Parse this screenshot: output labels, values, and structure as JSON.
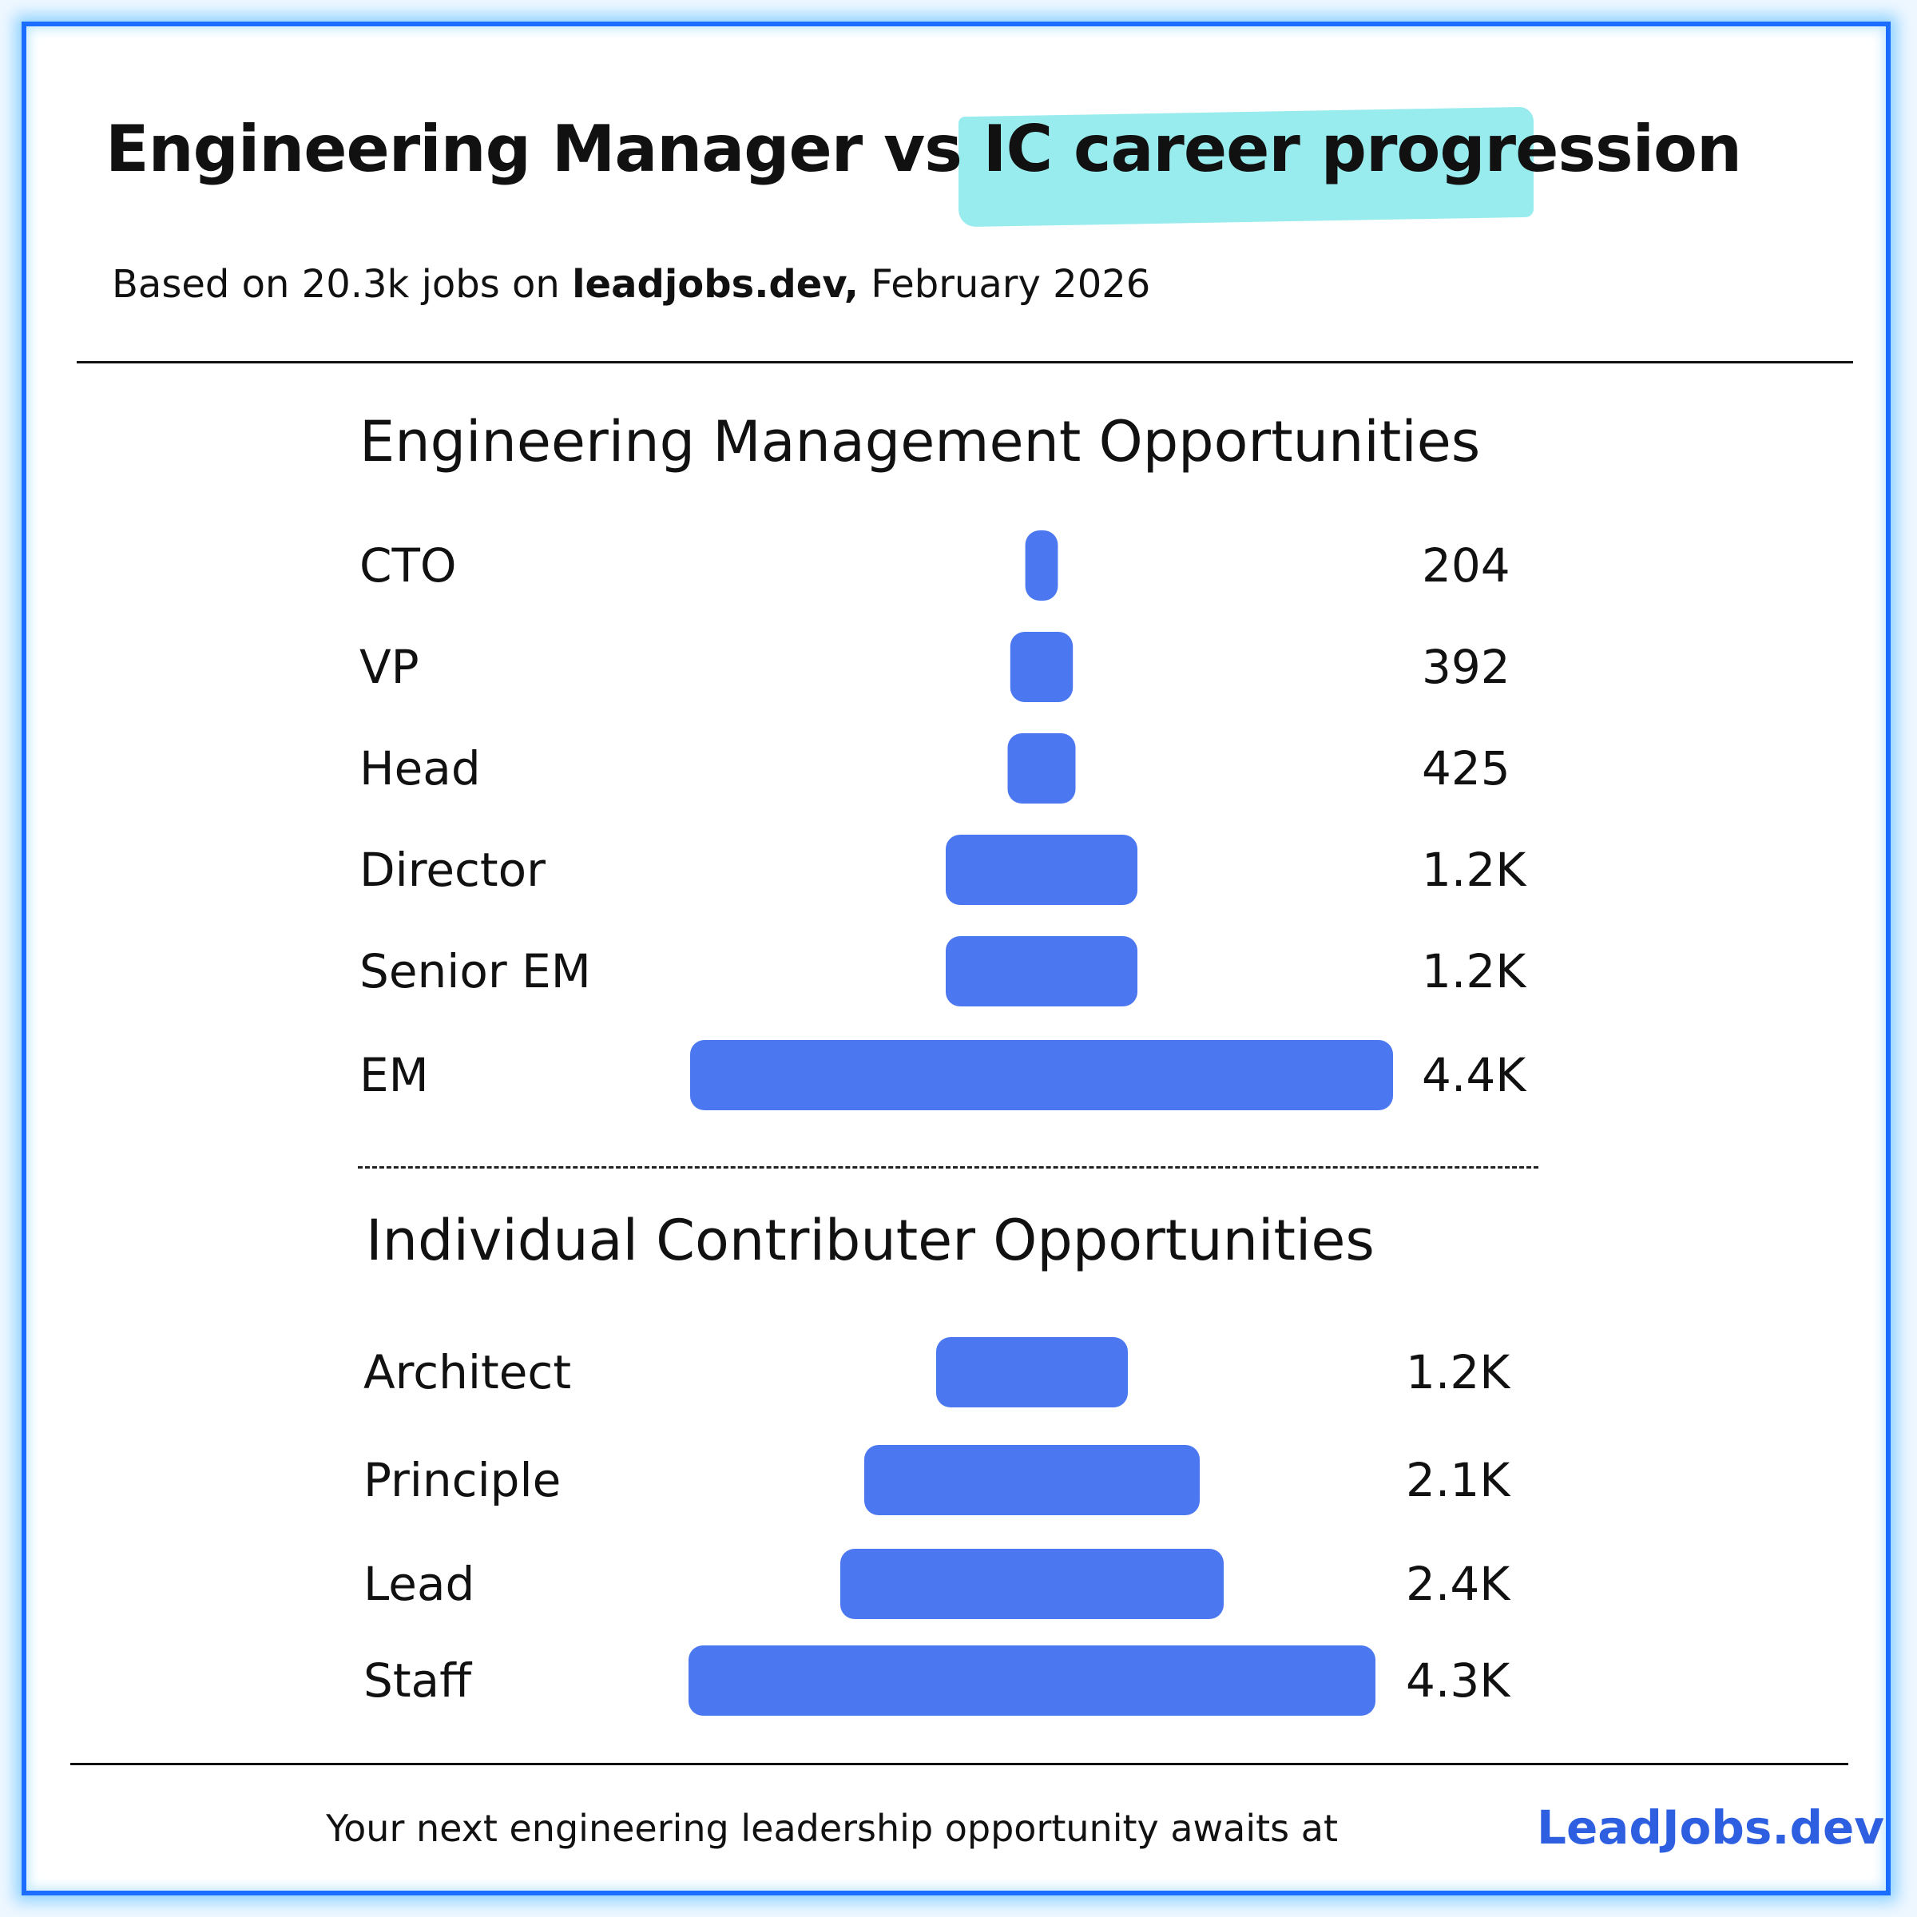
{
  "header": {
    "title_part1": "Engineering Manager vs IC ",
    "title_part2": "career progression",
    "subtitle_prefix": "Based on 20.3k jobs on ",
    "subtitle_site": "leadjobs.dev,",
    "subtitle_suffix": " February 2026",
    "highlight_color": "#98ecee"
  },
  "chart_data": [
    {
      "type": "bar",
      "orientation": "horizontal-centered",
      "title": "Engineering Management Opportunities",
      "categories": [
        "CTO",
        "VP",
        "Head",
        "Director",
        "Senior EM",
        "EM"
      ],
      "values": [
        204,
        392,
        425,
        1200,
        1200,
        4400
      ],
      "value_labels": [
        "204",
        "392",
        "425",
        "1.2K",
        "1.2K",
        "4.4K"
      ],
      "bar_color": "#4b78f0"
    },
    {
      "type": "bar",
      "orientation": "horizontal-centered",
      "title": "Individual Contributer Opportunities",
      "categories": [
        "Architect",
        "Principle",
        "Lead",
        "Staff"
      ],
      "values": [
        1200,
        2100,
        2400,
        4300
      ],
      "value_labels": [
        "1.2K",
        "2.1K",
        "2.4K",
        "4.3K"
      ],
      "bar_color": "#4b78f0"
    }
  ],
  "footer": {
    "text": "Your next engineering leadership opportunity awaits at",
    "brand": "LeadJobs.dev",
    "brand_color": "#2e5fe0"
  },
  "colors": {
    "frame": "#1a6dff",
    "glow": "#8fd2ff",
    "bar": "#4b78f0"
  }
}
